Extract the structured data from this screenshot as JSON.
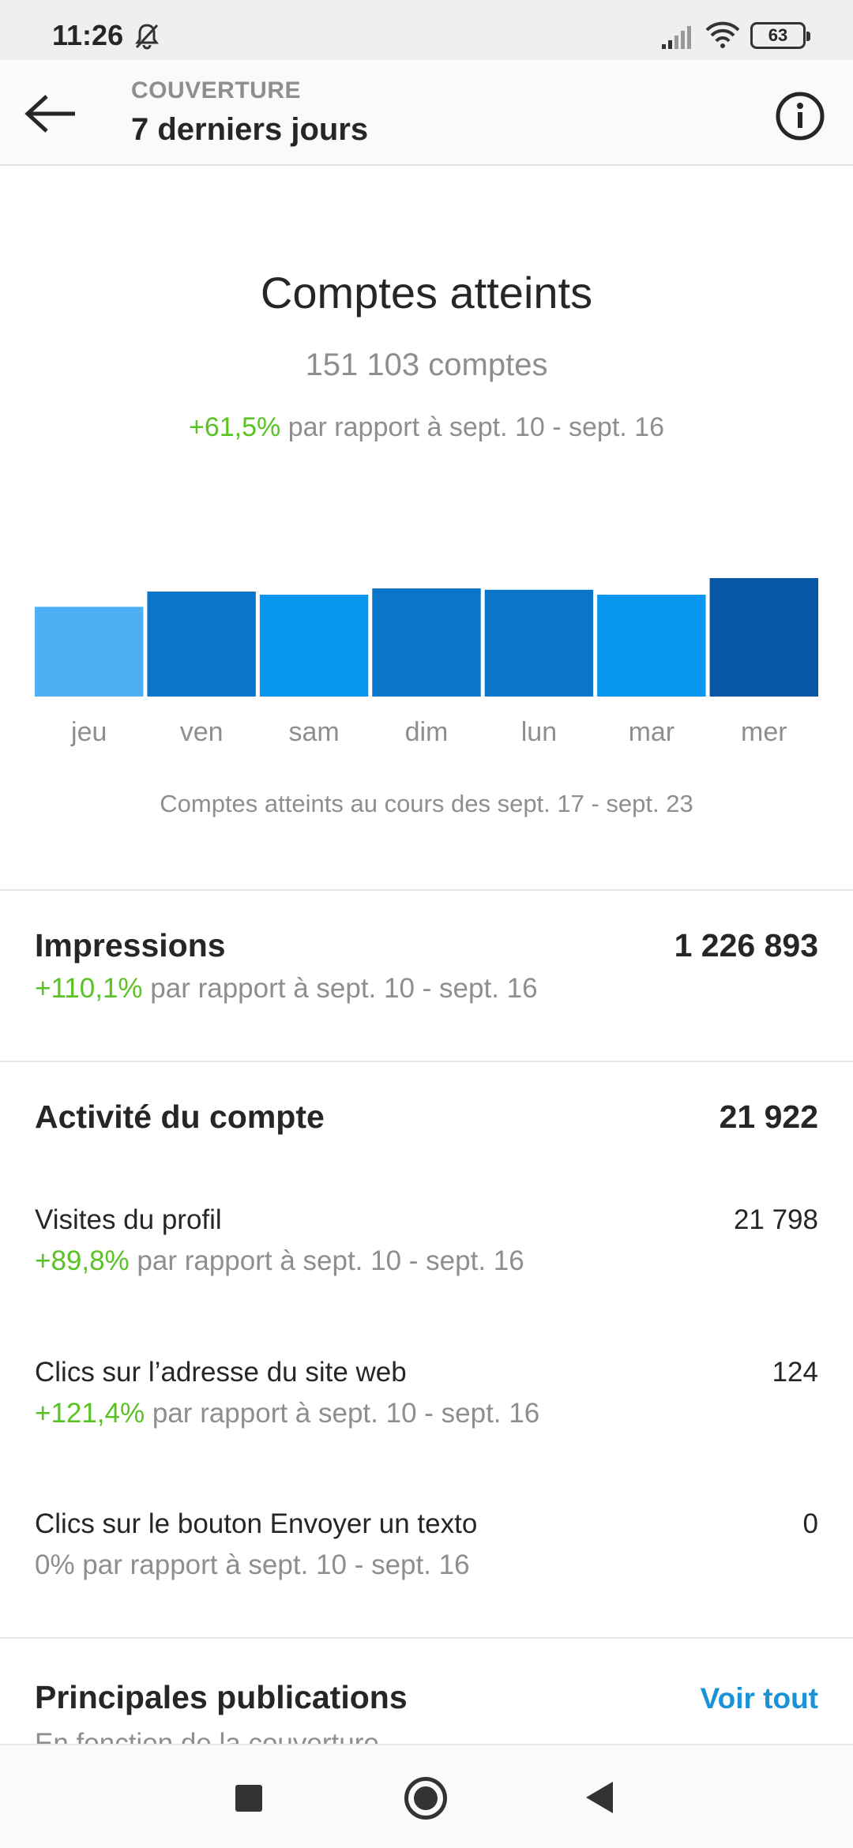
{
  "status_bar": {
    "time": "11:26",
    "battery": "63"
  },
  "header": {
    "overline": "COUVERTURE",
    "title": "7 derniers jours"
  },
  "summary": {
    "title": "Comptes atteints",
    "count": "151 103 comptes",
    "change": "+61,5%",
    "compare": " par rapport à sept. 10 - sept. 16"
  },
  "chart_data": {
    "type": "bar",
    "categories": [
      "jeu",
      "ven",
      "sam",
      "dim",
      "lun",
      "mar",
      "mer"
    ],
    "values": [
      20000,
      23400,
      22700,
      24100,
      23800,
      22700,
      26400
    ],
    "colors": [
      "#4db0f5",
      "#0a75c9",
      "#0896ef",
      "#0a75c9",
      "#0a75c9",
      "#0896ef",
      "#0759a8"
    ],
    "ylim": [
      0,
      26400
    ],
    "caption": "Comptes atteints au cours des sept. 17 - sept. 23"
  },
  "impressions": {
    "title": "Impressions",
    "value": "1 226 893",
    "change": "+110,1%",
    "compare": " par rapport à sept. 10 - sept. 16"
  },
  "activity": {
    "title": "Activité du compte",
    "value": "21 922",
    "items": [
      {
        "label": "Visites du profil",
        "value": "21 798",
        "change": "+89,8%",
        "compare": " par rapport à sept. 10 - sept. 16"
      },
      {
        "label": "Clics sur l’adresse du site web",
        "value": "124",
        "change": "+121,4%",
        "compare": " par rapport à sept. 10 - sept. 16"
      },
      {
        "label": "Clics sur le bouton Envoyer un texto",
        "value": "0",
        "change": "",
        "compare": "0% par rapport à sept. 10 - sept. 16"
      }
    ]
  },
  "publications": {
    "title": "Principales publications",
    "see_all": "Voir tout",
    "subtitle": "En fonction de la couverture"
  }
}
